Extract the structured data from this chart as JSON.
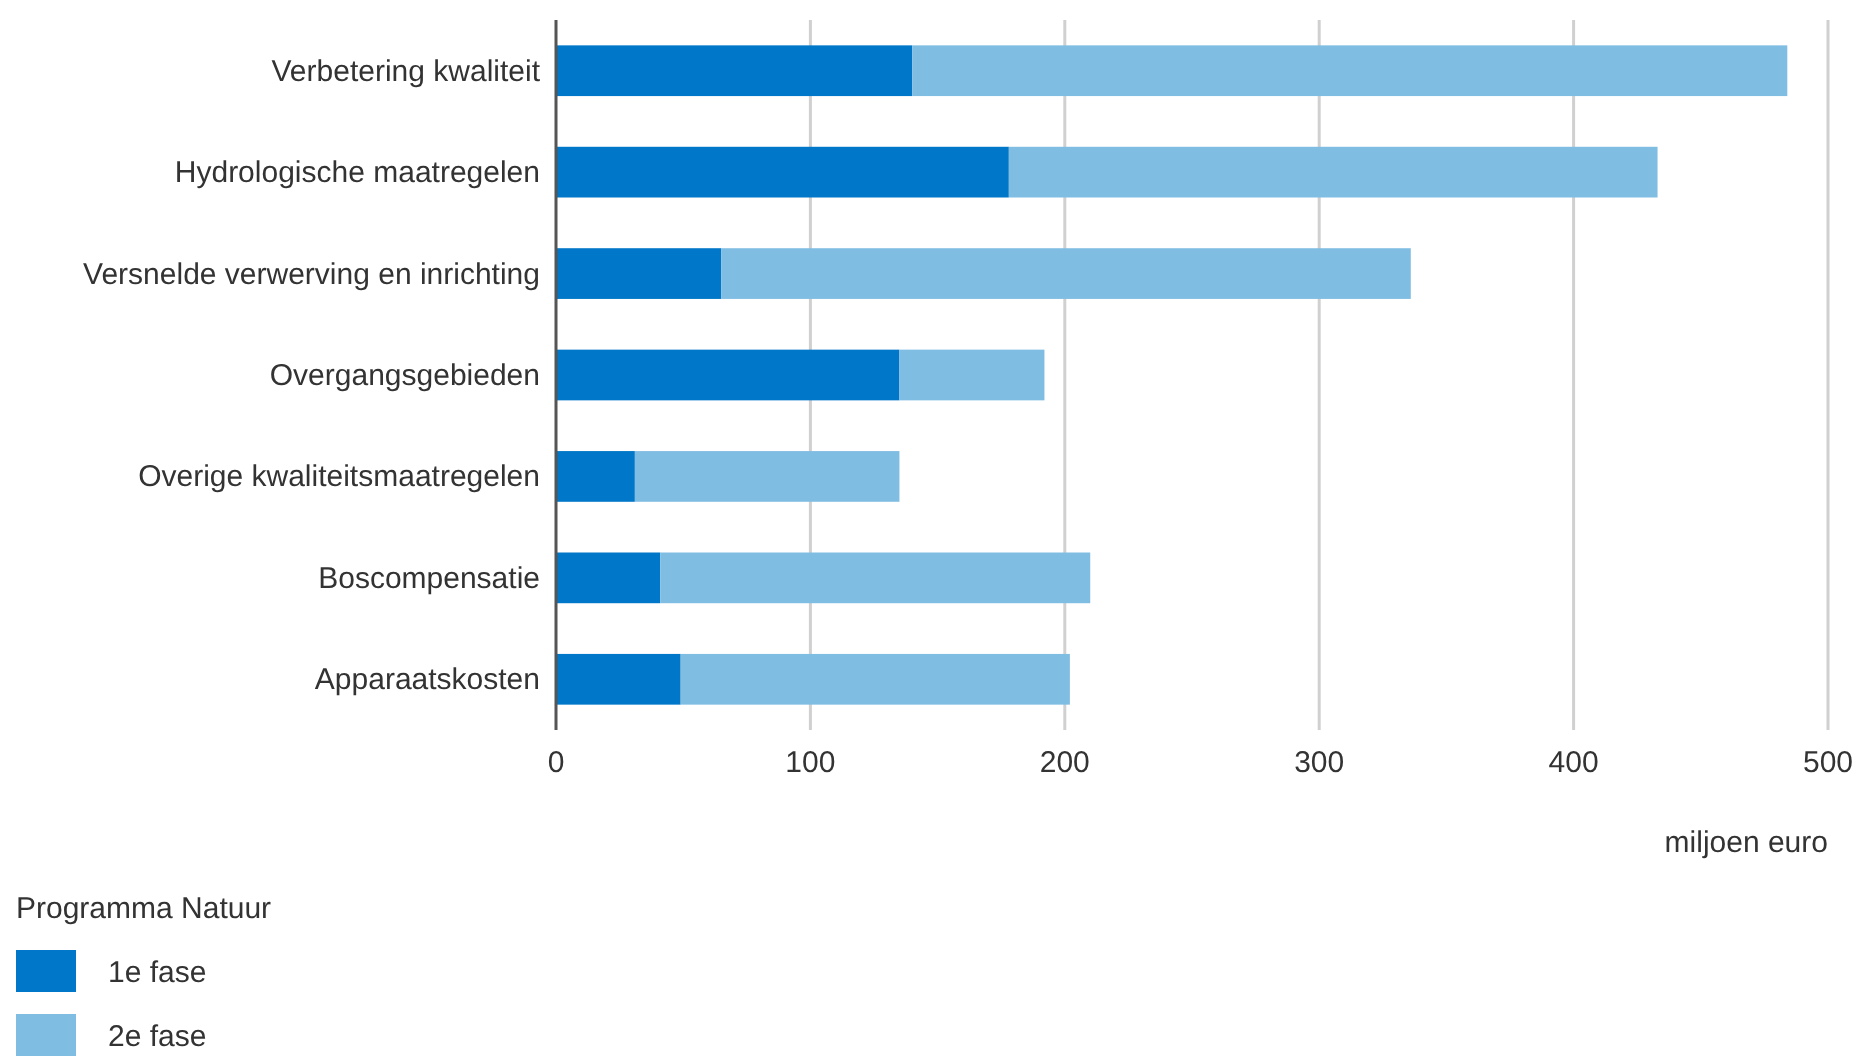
{
  "chart_data": {
    "type": "bar",
    "orientation": "horizontal",
    "stacked": true,
    "categories": [
      "Verbetering kwaliteit",
      "Hydrologische maatregelen",
      "Versnelde verwerving en inrichting",
      "Overgangsgebieden",
      "Overige kwaliteitsmaatregelen",
      "Boscompensatie",
      "Apparaatskosten"
    ],
    "series": [
      {
        "name": "1e fase",
        "color": "#0077c8",
        "values": [
          140,
          178,
          65,
          135,
          31,
          41,
          49
        ]
      },
      {
        "name": "2e fase",
        "color": "#80bde3",
        "values": [
          344,
          255,
          271,
          57,
          104,
          169,
          153
        ]
      }
    ],
    "xlim": [
      0,
      500
    ],
    "xticks": [
      0,
      100,
      200,
      300,
      400,
      500
    ],
    "xlabel": "miljoen euro",
    "legend_title": "Programma Natuur",
    "legend": "bottom left",
    "grid": "x"
  }
}
